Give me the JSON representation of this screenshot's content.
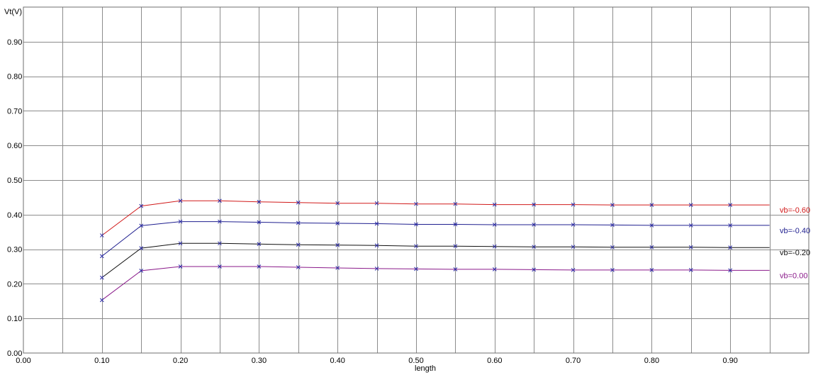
{
  "chart_data": {
    "type": "line",
    "ylabel": "Vt(V)",
    "xlabel": "length",
    "xlim": [
      0.0,
      1.0
    ],
    "ylim": [
      0.0,
      1.0
    ],
    "x_ticks": [
      0.0,
      0.1,
      0.2,
      0.3,
      0.4,
      0.5,
      0.6,
      0.7,
      0.8,
      0.9
    ],
    "x_tick_labels": [
      "0.00",
      "0.10",
      "0.20",
      "0.30",
      "0.40",
      "0.50",
      "0.60",
      "0.70",
      "0.80",
      "0.90"
    ],
    "y_ticks": [
      0.0,
      0.1,
      0.2,
      0.3,
      0.4,
      0.5,
      0.6,
      0.7,
      0.8,
      0.9
    ],
    "y_tick_labels": [
      "0.00",
      "0.10",
      "0.20",
      "0.30",
      "0.40",
      "0.50",
      "0.60",
      "0.70",
      "0.80",
      "0.90"
    ],
    "grid": true,
    "marker_color": "#2a2aa8",
    "x": [
      0.1,
      0.15,
      0.2,
      0.25,
      0.3,
      0.35,
      0.4,
      0.45,
      0.5,
      0.55,
      0.6,
      0.65,
      0.7,
      0.75,
      0.8,
      0.85,
      0.9,
      0.95
    ],
    "marker_x": [
      0.1,
      0.15,
      0.2,
      0.25,
      0.3,
      0.35,
      0.4,
      0.45,
      0.5,
      0.55,
      0.6,
      0.65,
      0.7,
      0.75,
      0.8,
      0.85,
      0.9
    ],
    "series": [
      {
        "name": "vb=-0.60",
        "color": "#d11a1a",
        "values": [
          0.34,
          0.425,
          0.44,
          0.44,
          0.437,
          0.435,
          0.433,
          0.433,
          0.431,
          0.431,
          0.429,
          0.429,
          0.429,
          0.428,
          0.428,
          0.428,
          0.428,
          0.428
        ]
      },
      {
        "name": "vb=-0.40",
        "color": "#1f1f8f",
        "values": [
          0.28,
          0.368,
          0.38,
          0.38,
          0.378,
          0.376,
          0.375,
          0.374,
          0.372,
          0.372,
          0.371,
          0.371,
          0.371,
          0.37,
          0.369,
          0.369,
          0.369,
          0.369
        ]
      },
      {
        "name": "vb=-0.20",
        "color": "#111111",
        "values": [
          0.218,
          0.303,
          0.317,
          0.317,
          0.315,
          0.313,
          0.312,
          0.311,
          0.309,
          0.309,
          0.308,
          0.307,
          0.307,
          0.306,
          0.306,
          0.306,
          0.305,
          0.305
        ]
      },
      {
        "name": "vb=0.00",
        "color": "#8a1a8a",
        "values": [
          0.153,
          0.238,
          0.25,
          0.25,
          0.25,
          0.248,
          0.246,
          0.244,
          0.243,
          0.242,
          0.242,
          0.241,
          0.24,
          0.24,
          0.24,
          0.24,
          0.239,
          0.239
        ]
      }
    ]
  }
}
